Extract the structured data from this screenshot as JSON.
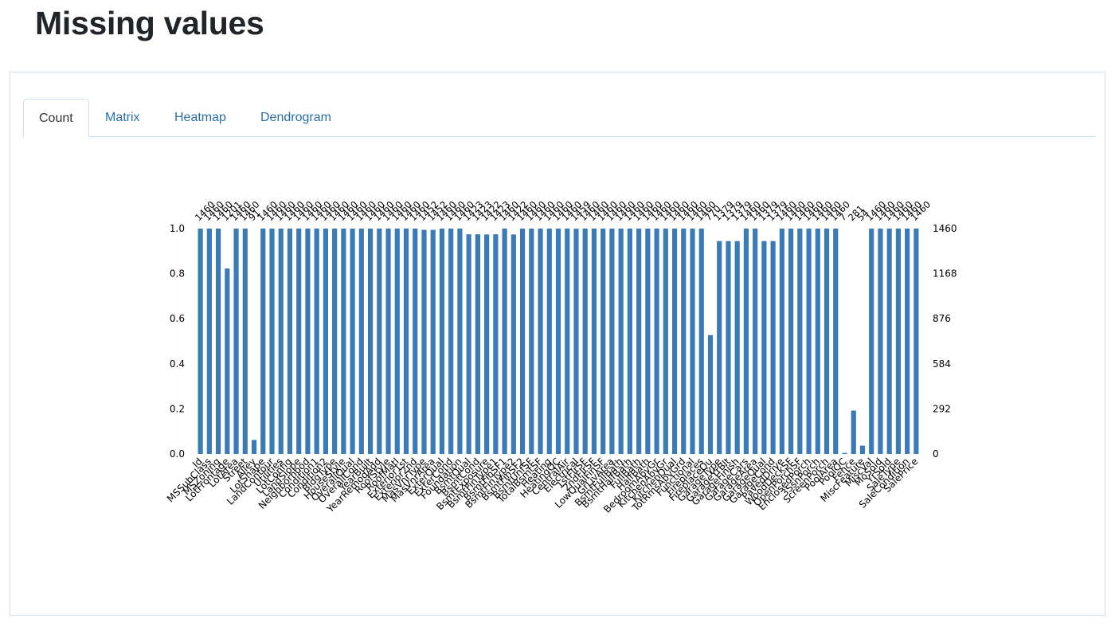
{
  "page": {
    "title": "Missing values"
  },
  "tabs": [
    {
      "label": "Count",
      "active": true
    },
    {
      "label": "Matrix",
      "active": false
    },
    {
      "label": "Heatmap",
      "active": false
    },
    {
      "label": "Dendrogram",
      "active": false
    }
  ],
  "chart_data": {
    "type": "bar",
    "title": "",
    "xlabel": "",
    "ylabel": "",
    "ylim": [
      0,
      1.0
    ],
    "y_ticks": [
      "0.0",
      "0.2",
      "0.4",
      "0.6",
      "0.8",
      "1.0"
    ],
    "y2_ticks": [
      "0",
      "292",
      "584",
      "876",
      "1168",
      "1460"
    ],
    "total": 1460,
    "bar_color": "#3a7ab7",
    "grid": false,
    "categories": [
      "Id",
      "MSSubClass",
      "MSZoning",
      "LotFrontage",
      "LotArea",
      "Street",
      "Alley",
      "LotShape",
      "LandContour",
      "Utilities",
      "LotConfig",
      "LandSlope",
      "Neighborhood",
      "Condition1",
      "Condition2",
      "BldgType",
      "HouseStyle",
      "OverallQual",
      "OverallCond",
      "YearBuilt",
      "YearRemodAdd",
      "RoofStyle",
      "RoofMatl",
      "Exterior1st",
      "Exterior2nd",
      "MasVnrType",
      "MasVnrArea",
      "ExterQual",
      "ExterCond",
      "Foundation",
      "BsmtQual",
      "BsmtCond",
      "BsmtExposure",
      "BsmtFinType1",
      "BsmtFinSF1",
      "BsmtFinType2",
      "BsmtFinSF2",
      "BsmtUnfSF",
      "TotalBsmtSF",
      "Heating",
      "HeatingQC",
      "CentralAir",
      "Electrical",
      "1stFlrSF",
      "2ndFlrSF",
      "LowQualFinSF",
      "GrLivArea",
      "BsmtFullBath",
      "BsmtHalfBath",
      "FullBath",
      "HalfBath",
      "BedroomAbvGr",
      "KitchenAbvGr",
      "KitchenQual",
      "TotRmsAbvGrd",
      "Functional",
      "Fireplaces",
      "FireplaceQu",
      "GarageType",
      "GarageYrBlt",
      "GarageFinish",
      "GarageCars",
      "GarageArea",
      "GarageQual",
      "GarageCond",
      "PavedDrive",
      "WoodDeckSF",
      "OpenPorchSF",
      "EnclosedPorch",
      "3SsnPorch",
      "ScreenPorch",
      "PoolArea",
      "PoolQC",
      "Fence",
      "MiscFeature",
      "MiscVal",
      "MoSold",
      "YrSold",
      "SaleType",
      "SaleCondition",
      "SalePrice"
    ],
    "values": [
      1460,
      1460,
      1460,
      1201,
      1460,
      1460,
      91,
      1460,
      1460,
      1460,
      1460,
      1460,
      1460,
      1460,
      1460,
      1460,
      1460,
      1460,
      1460,
      1460,
      1460,
      1460,
      1460,
      1460,
      1460,
      1452,
      1452,
      1460,
      1460,
      1460,
      1423,
      1423,
      1422,
      1423,
      1460,
      1422,
      1460,
      1460,
      1460,
      1460,
      1460,
      1460,
      1459,
      1460,
      1460,
      1460,
      1460,
      1460,
      1460,
      1460,
      1460,
      1460,
      1460,
      1460,
      1460,
      1460,
      1460,
      770,
      1379,
      1379,
      1379,
      1460,
      1460,
      1379,
      1379,
      1460,
      1460,
      1460,
      1460,
      1460,
      1460,
      1460,
      7,
      281,
      54,
      1460,
      1460,
      1460,
      1460,
      1460,
      1460
    ]
  }
}
